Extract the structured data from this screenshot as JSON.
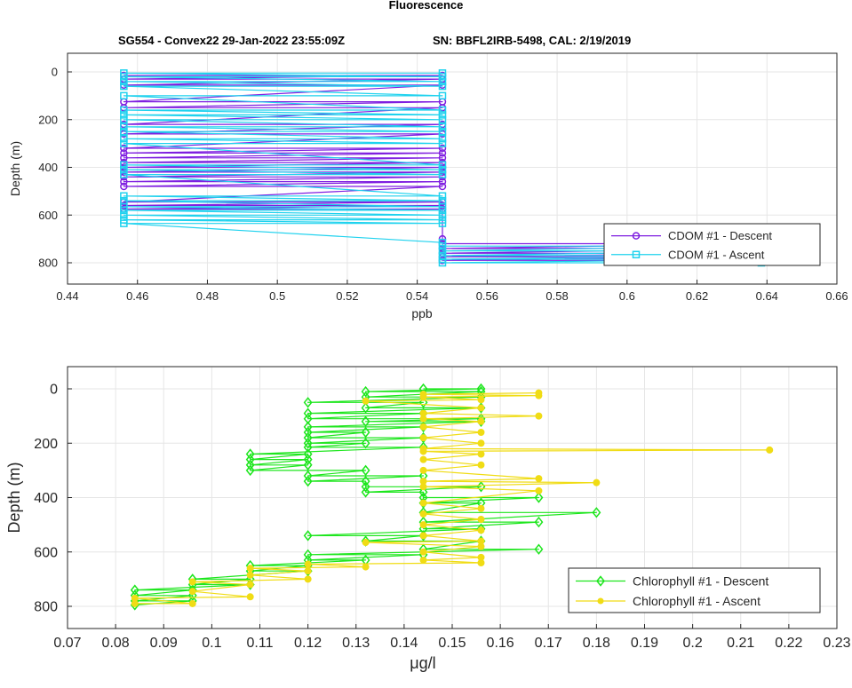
{
  "figure": {
    "title": "Fluorescence",
    "subtitle_left": "SG554 - Convex22 29-Jan-2022 23:55:09Z",
    "subtitle_right": "SN: BBFL2IRB-5498, CAL: 2/19/2019"
  },
  "chart_data": [
    {
      "type": "line",
      "xlabel": "ppb",
      "ylabel": "Depth (m)",
      "xlim": [
        0.44,
        0.66
      ],
      "ylim": [
        0,
        800
      ],
      "y_reversed": true,
      "xticks": [
        "0.44",
        "0.46",
        "0.48",
        "0.5",
        "0.52",
        "0.54",
        "0.56",
        "0.58",
        "0.6",
        "0.62",
        "0.64",
        "0.66"
      ],
      "yticks": [
        "0",
        "200",
        "400",
        "600",
        "800"
      ],
      "grid": true,
      "legend_position": "bottom-right",
      "series": [
        {
          "name": "CDOM #1 - Descent",
          "color": "#7f1fe0",
          "marker": "circle",
          "levels_x": [
            0.4561,
            0.5472,
            0.6384
          ],
          "points": [
            [
              0.4561,
              15
            ],
            [
              0.5472,
              15
            ],
            [
              0.4561,
              30
            ],
            [
              0.5472,
              30
            ],
            [
              0.4561,
              55
            ],
            [
              0.5472,
              55
            ],
            [
              0.4561,
              125
            ],
            [
              0.5472,
              125
            ],
            [
              0.4561,
              150
            ],
            [
              0.5472,
              150
            ],
            [
              0.4561,
              220
            ],
            [
              0.5472,
              220
            ],
            [
              0.4561,
              260
            ],
            [
              0.5472,
              260
            ],
            [
              0.4561,
              320
            ],
            [
              0.5472,
              320
            ],
            [
              0.4561,
              340
            ],
            [
              0.5472,
              340
            ],
            [
              0.4561,
              360
            ],
            [
              0.5472,
              360
            ],
            [
              0.4561,
              380
            ],
            [
              0.5472,
              380
            ],
            [
              0.4561,
              400
            ],
            [
              0.5472,
              400
            ],
            [
              0.4561,
              420
            ],
            [
              0.5472,
              420
            ],
            [
              0.4561,
              440
            ],
            [
              0.5472,
              440
            ],
            [
              0.4561,
              460
            ],
            [
              0.5472,
              460
            ],
            [
              0.4561,
              480
            ],
            [
              0.5472,
              480
            ],
            [
              0.4561,
              545
            ],
            [
              0.5472,
              545
            ],
            [
              0.4561,
              560
            ],
            [
              0.5472,
              560
            ],
            [
              0.4561,
              575
            ],
            [
              0.5472,
              575
            ],
            [
              0.5472,
              700
            ],
            [
              0.5472,
              720
            ],
            [
              0.6384,
              720
            ],
            [
              0.5472,
              740
            ],
            [
              0.6384,
              740
            ],
            [
              0.5472,
              760
            ],
            [
              0.6384,
              760
            ],
            [
              0.5472,
              775
            ],
            [
              0.6384,
              775
            ],
            [
              0.5472,
              790
            ],
            [
              0.6384,
              790
            ]
          ]
        },
        {
          "name": "CDOM #1 - Ascent",
          "color": "#1fd2ee",
          "marker": "square",
          "levels_x": [
            0.4561,
            0.5472,
            0.6384
          ],
          "points": [
            [
              0.6384,
              800
            ],
            [
              0.5472,
              800
            ],
            [
              0.6384,
              785
            ],
            [
              0.5472,
              785
            ],
            [
              0.6384,
              770
            ],
            [
              0.5472,
              770
            ],
            [
              0.6384,
              750
            ],
            [
              0.5472,
              750
            ],
            [
              0.6384,
              730
            ],
            [
              0.5472,
              730
            ],
            [
              0.5472,
              715
            ],
            [
              0.4561,
              635
            ],
            [
              0.5472,
              635
            ],
            [
              0.4561,
              620
            ],
            [
              0.5472,
              620
            ],
            [
              0.4561,
              600
            ],
            [
              0.5472,
              600
            ],
            [
              0.4561,
              580
            ],
            [
              0.5472,
              580
            ],
            [
              0.4561,
              565
            ],
            [
              0.5472,
              565
            ],
            [
              0.4561,
              540
            ],
            [
              0.5472,
              540
            ],
            [
              0.4561,
              520
            ],
            [
              0.5472,
              520
            ],
            [
              0.4561,
              430
            ],
            [
              0.5472,
              430
            ],
            [
              0.4561,
              410
            ],
            [
              0.5472,
              410
            ],
            [
              0.4561,
              390
            ],
            [
              0.5472,
              390
            ],
            [
              0.4561,
              300
            ],
            [
              0.5472,
              300
            ],
            [
              0.4561,
              280
            ],
            [
              0.5472,
              280
            ],
            [
              0.4561,
              250
            ],
            [
              0.5472,
              250
            ],
            [
              0.4561,
              230
            ],
            [
              0.5472,
              230
            ],
            [
              0.4561,
              200
            ],
            [
              0.5472,
              200
            ],
            [
              0.4561,
              180
            ],
            [
              0.5472,
              180
            ],
            [
              0.4561,
              160
            ],
            [
              0.5472,
              160
            ],
            [
              0.4561,
              100
            ],
            [
              0.5472,
              100
            ],
            [
              0.4561,
              60
            ],
            [
              0.5472,
              60
            ],
            [
              0.4561,
              40
            ],
            [
              0.5472,
              40
            ],
            [
              0.4561,
              20
            ],
            [
              0.5472,
              20
            ],
            [
              0.4561,
              5
            ],
            [
              0.5472,
              5
            ]
          ]
        }
      ]
    },
    {
      "type": "line",
      "xlabel": "μg/l",
      "ylabel": "Depth (m)",
      "xlim": [
        0.07,
        0.23
      ],
      "ylim": [
        0,
        800
      ],
      "y_reversed": true,
      "xticks": [
        "0.07",
        "0.08",
        "0.09",
        "0.1",
        "0.11",
        "0.12",
        "0.13",
        "0.14",
        "0.15",
        "0.16",
        "0.17",
        "0.18",
        "0.19",
        "0.2",
        "0.21",
        "0.22",
        "0.23"
      ],
      "yticks": [
        "0",
        "200",
        "400",
        "600",
        "800"
      ],
      "grid": true,
      "legend_position": "bottom-right",
      "series": [
        {
          "name": "Chlorophyll #1 - Descent",
          "color": "#1ee61e",
          "marker": "diamond",
          "points": [
            [
              0.144,
              0
            ],
            [
              0.156,
              0
            ],
            [
              0.132,
              10
            ],
            [
              0.156,
              10
            ],
            [
              0.132,
              30
            ],
            [
              0.156,
              30
            ],
            [
              0.12,
              50
            ],
            [
              0.144,
              50
            ],
            [
              0.132,
              70
            ],
            [
              0.156,
              70
            ],
            [
              0.12,
              90
            ],
            [
              0.144,
              90
            ],
            [
              0.12,
              110
            ],
            [
              0.156,
              110
            ],
            [
              0.132,
              120
            ],
            [
              0.156,
              120
            ],
            [
              0.12,
              140
            ],
            [
              0.144,
              140
            ],
            [
              0.12,
              160
            ],
            [
              0.132,
              160
            ],
            [
              0.12,
              180
            ],
            [
              0.144,
              180
            ],
            [
              0.12,
              200
            ],
            [
              0.132,
              200
            ],
            [
              0.12,
              215
            ],
            [
              0.144,
              215
            ],
            [
              0.108,
              240
            ],
            [
              0.12,
              240
            ],
            [
              0.108,
              260
            ],
            [
              0.12,
              260
            ],
            [
              0.108,
              280
            ],
            [
              0.12,
              280
            ],
            [
              0.108,
              300
            ],
            [
              0.132,
              300
            ],
            [
              0.12,
              320
            ],
            [
              0.144,
              320
            ],
            [
              0.12,
              340
            ],
            [
              0.132,
              340
            ],
            [
              0.132,
              360
            ],
            [
              0.156,
              360
            ],
            [
              0.132,
              380
            ],
            [
              0.144,
              380
            ],
            [
              0.144,
              400
            ],
            [
              0.168,
              400
            ],
            [
              0.144,
              420
            ],
            [
              0.156,
              420
            ],
            [
              0.144,
              455
            ],
            [
              0.18,
              455
            ],
            [
              0.144,
              490
            ],
            [
              0.168,
              490
            ],
            [
              0.144,
              515
            ],
            [
              0.156,
              515
            ],
            [
              0.12,
              540
            ],
            [
              0.144,
              540
            ],
            [
              0.132,
              560
            ],
            [
              0.156,
              560
            ],
            [
              0.144,
              590
            ],
            [
              0.168,
              590
            ],
            [
              0.12,
              610
            ],
            [
              0.144,
              610
            ],
            [
              0.12,
              630
            ],
            [
              0.132,
              630
            ],
            [
              0.108,
              650
            ],
            [
              0.12,
              650
            ],
            [
              0.108,
              670
            ],
            [
              0.12,
              670
            ],
            [
              0.096,
              700
            ],
            [
              0.108,
              700
            ],
            [
              0.096,
              720
            ],
            [
              0.108,
              720
            ],
            [
              0.084,
              740
            ],
            [
              0.096,
              740
            ],
            [
              0.084,
              760
            ],
            [
              0.096,
              760
            ],
            [
              0.084,
              780
            ],
            [
              0.096,
              780
            ],
            [
              0.084,
              795
            ]
          ]
        },
        {
          "name": "Chlorophyll #1 - Ascent",
          "color": "#f0dc14",
          "marker": "circle",
          "points": [
            [
              0.084,
              790
            ],
            [
              0.096,
              790
            ],
            [
              0.084,
              770
            ],
            [
              0.108,
              765
            ],
            [
              0.096,
              745
            ],
            [
              0.108,
              720
            ],
            [
              0.096,
              710
            ],
            [
              0.12,
              700
            ],
            [
              0.108,
              685
            ],
            [
              0.12,
              670
            ],
            [
              0.108,
              660
            ],
            [
              0.132,
              655
            ],
            [
              0.12,
              645
            ],
            [
              0.156,
              640
            ],
            [
              0.144,
              630
            ],
            [
              0.156,
              620
            ],
            [
              0.144,
              600
            ],
            [
              0.156,
              580
            ],
            [
              0.132,
              565
            ],
            [
              0.156,
              560
            ],
            [
              0.144,
              540
            ],
            [
              0.156,
              520
            ],
            [
              0.144,
              500
            ],
            [
              0.156,
              480
            ],
            [
              0.144,
              460
            ],
            [
              0.156,
              440
            ],
            [
              0.144,
              420
            ],
            [
              0.168,
              375
            ],
            [
              0.144,
              360
            ],
            [
              0.18,
              345
            ],
            [
              0.144,
              340
            ],
            [
              0.168,
              330
            ],
            [
              0.144,
              300
            ],
            [
              0.156,
              280
            ],
            [
              0.144,
              260
            ],
            [
              0.156,
              240
            ],
            [
              0.144,
              230
            ],
            [
              0.216,
              225
            ],
            [
              0.144,
              220
            ],
            [
              0.156,
              200
            ],
            [
              0.144,
              180
            ],
            [
              0.156,
              160
            ],
            [
              0.144,
              140
            ],
            [
              0.156,
              120
            ],
            [
              0.144,
              110
            ],
            [
              0.168,
              100
            ],
            [
              0.144,
              90
            ],
            [
              0.156,
              70
            ],
            [
              0.132,
              45
            ],
            [
              0.156,
              40
            ],
            [
              0.144,
              30
            ],
            [
              0.168,
              25
            ],
            [
              0.144,
              20
            ],
            [
              0.168,
              15
            ]
          ]
        }
      ]
    }
  ]
}
